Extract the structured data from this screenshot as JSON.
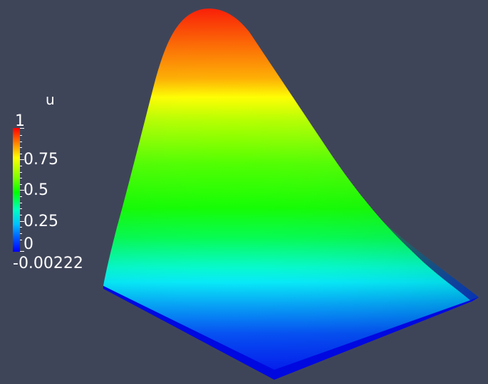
{
  "scalar_bar": {
    "title": "u",
    "max_label": "1",
    "labels": [
      "0.75",
      "0.5",
      "0.25",
      "0"
    ],
    "min_label": "-0.00222",
    "colormap": [
      "#ff0000",
      "#ff8000",
      "#ffff00",
      "#00ff00",
      "#00ffff",
      "#0000ff"
    ]
  },
  "colors": {
    "background": "#3f4559"
  }
}
